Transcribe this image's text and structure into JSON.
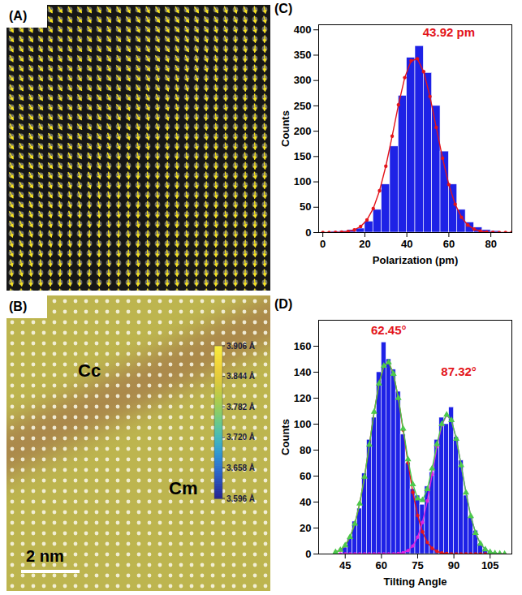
{
  "chart_data": [
    {
      "type": "image",
      "title": "(A)"
    },
    {
      "type": "image",
      "title": "(B)",
      "annotations": [
        "Cc",
        "Cm"
      ],
      "scale_bar": "2 nm",
      "colorbar": {
        "range": [
          3.596,
          3.906
        ],
        "ticks": [
          {
            "value": 3.906,
            "label": "3.906 Å"
          },
          {
            "value": 3.844,
            "label": "3.844 Å"
          },
          {
            "value": 3.782,
            "label": "3.782 Å"
          },
          {
            "value": 3.72,
            "label": "3.720 Å"
          },
          {
            "value": 3.658,
            "label": "3.658 Å"
          },
          {
            "value": 3.596,
            "label": "3.596 Å"
          }
        ]
      }
    },
    {
      "type": "histogram",
      "title": "(C)",
      "x_label": "Polarization (pm)",
      "y_label": "Counts",
      "color": "#1e22e6",
      "bins": [
        0,
        4,
        8,
        12,
        16,
        20,
        24,
        28,
        32,
        36,
        40,
        44,
        48,
        52,
        56,
        60,
        64,
        68,
        72,
        76,
        80,
        84,
        88
      ],
      "counts": [
        0,
        2,
        3,
        5,
        8,
        22,
        45,
        95,
        170,
        270,
        345,
        368,
        315,
        250,
        160,
        95,
        45,
        20,
        10,
        5,
        3,
        1
      ],
      "xlim": [
        -2,
        90
      ],
      "ylim": [
        0,
        410
      ],
      "xticks": [
        0,
        20,
        40,
        60,
        80
      ],
      "yticks": [
        0,
        50,
        100,
        150,
        200,
        250,
        300,
        350,
        400
      ],
      "fits": [
        {
          "type": "line",
          "color": "#e3141b",
          "marker": "circle",
          "x": [
            0,
            3,
            6,
            9,
            12,
            15,
            18,
            21,
            24,
            27,
            30,
            33,
            36,
            39,
            42,
            45,
            48,
            51,
            54,
            57,
            60,
            63,
            66,
            69,
            72,
            75,
            78,
            81,
            84,
            87,
            90
          ],
          "values": [
            0,
            0.1,
            0.3,
            0.8,
            2.1,
            5.3,
            12.0,
            24.9,
            47.4,
            82.5,
            130.9,
            190.1,
            252.1,
            305.7,
            338.7,
            343.0,
            317.5,
            268.5,
            207.6,
            146.7,
            94.7,
            55.9,
            30.2,
            14.9,
            6.7,
            2.8,
            1.0,
            0.4,
            0.1,
            0,
            0
          ]
        }
      ],
      "annotations": [
        {
          "text": "43.92 pm",
          "x": 60,
          "y": 395,
          "color": "#e3141b"
        }
      ]
    },
    {
      "type": "histogram",
      "title": "(D)",
      "x_label": "Tilting Angle",
      "y_label": "Counts",
      "color": "#1e22e6",
      "bins": [
        44,
        46,
        48,
        50,
        52,
        54,
        56,
        58,
        60,
        62,
        64,
        66,
        68,
        70,
        72,
        74,
        76,
        78,
        80,
        82,
        84,
        86,
        88,
        90,
        92,
        94,
        96,
        98,
        100,
        102,
        104,
        106,
        108
      ],
      "counts": [
        5,
        12,
        25,
        35,
        62,
        88,
        105,
        140,
        163,
        150,
        142,
        125,
        92,
        70,
        50,
        45,
        38,
        52,
        63,
        88,
        105,
        100,
        113,
        90,
        72,
        45,
        28,
        18,
        8,
        4,
        2,
        1
      ],
      "xlim": [
        34,
        114
      ],
      "ylim": [
        0,
        180
      ],
      "xticks": [
        45,
        60,
        75,
        90,
        105
      ],
      "yticks": [
        0,
        20,
        40,
        60,
        80,
        100,
        120,
        140,
        160
      ],
      "fits": [
        {
          "type": "line",
          "color": "#e3141b",
          "marker": "circle",
          "x": [
            41,
            43,
            45,
            47,
            49,
            51,
            53,
            55,
            57,
            59,
            61,
            63,
            65,
            67,
            69,
            71,
            73,
            75,
            77,
            79,
            81,
            83,
            85,
            87,
            89,
            91,
            93,
            95,
            97,
            99,
            101,
            103,
            105,
            107,
            109,
            111
          ],
          "values": [
            1.4,
            3.1,
            6.6,
            13.0,
            23.4,
            38.8,
            59.5,
            84.1,
            109.4,
            131.1,
            144.9,
            147.6,
            138.5,
            119.8,
            95.5,
            70.2,
            47.5,
            29.7,
            17.0,
            9.0,
            4.4,
            2.0,
            0.8,
            0.3,
            0.1,
            0,
            0,
            0,
            0,
            0,
            0,
            0,
            0,
            0,
            0,
            0
          ]
        },
        {
          "type": "line",
          "color": "#e021e0",
          "marker": "circle",
          "x": [
            41,
            43,
            45,
            47,
            49,
            51,
            53,
            55,
            57,
            59,
            61,
            63,
            65,
            67,
            69,
            71,
            73,
            75,
            77,
            79,
            81,
            83,
            85,
            87,
            89,
            91,
            93,
            95,
            97,
            99,
            101,
            103,
            105,
            107,
            109,
            111
          ],
          "values": [
            0,
            0,
            0,
            0,
            0,
            0,
            0,
            0,
            0,
            0,
            0,
            0,
            0.1,
            0.3,
            1.0,
            2.6,
            6.2,
            13.0,
            24.4,
            40.9,
            61.4,
            82.6,
            99.3,
            106.9,
            102.9,
            88.7,
            68.4,
            47.2,
            29.1,
            16.1,
            7.9,
            3.5,
            1.4,
            0.5,
            0.2,
            0
          ]
        },
        {
          "type": "line",
          "color": "#4cc94c",
          "marker": "triangle",
          "x": [
            41,
            43,
            45,
            47,
            49,
            51,
            53,
            55,
            57,
            59,
            61,
            63,
            65,
            67,
            69,
            71,
            73,
            75,
            77,
            79,
            81,
            83,
            85,
            87,
            89,
            91,
            93,
            95,
            97,
            99,
            101,
            103,
            105,
            107,
            109,
            111
          ],
          "values": [
            1.4,
            3.1,
            6.6,
            13.0,
            23.4,
            38.8,
            59.5,
            84.1,
            109.4,
            131.1,
            144.9,
            147.6,
            138.6,
            120.1,
            96.5,
            72.8,
            53.7,
            42.7,
            41.4,
            49.9,
            65.8,
            84.6,
            100.1,
            107.2,
            103.0,
            88.7,
            68.4,
            47.2,
            29.1,
            16.1,
            7.9,
            3.5,
            1.4,
            0.5,
            0.2,
            0
          ]
        }
      ],
      "annotations": [
        {
          "text": "62.45°",
          "x": 63,
          "y": 172,
          "color": "#e3141b"
        },
        {
          "text": "87.32°",
          "x": 92,
          "y": 140,
          "color": "#e3141b"
        }
      ]
    }
  ]
}
